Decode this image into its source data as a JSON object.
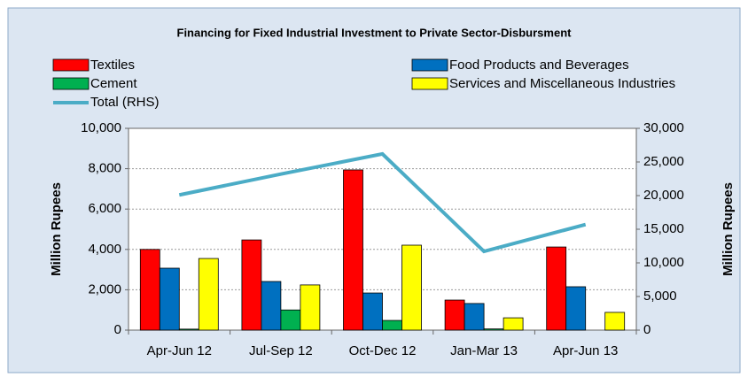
{
  "chart_data": {
    "type": "bar",
    "title": "Financing for Fixed Industrial  Investment to  Private Sector-Disbursment",
    "categories": [
      "Apr-Jun 12",
      "Jul-Sep 12",
      "Oct-Dec 12",
      "Jan-Mar 13",
      "Apr-Jun 13"
    ],
    "series": [
      {
        "name": "Textiles",
        "color": "#ff0000",
        "values": [
          4000,
          4470,
          7940,
          1490,
          4120
        ]
      },
      {
        "name": "Food Products and Beverages",
        "color": "#0070c0",
        "values": [
          3070,
          2410,
          1840,
          1320,
          2150
        ]
      },
      {
        "name": "Cement",
        "color": "#00b050",
        "values": [
          50,
          1000,
          480,
          60,
          0
        ]
      },
      {
        "name": "Services and Miscellaneous Industries",
        "color": "#ffff00",
        "values": [
          3550,
          2240,
          4210,
          610,
          880
        ]
      },
      {
        "name": "Total (RHS)",
        "color": "#4bacc6",
        "axis": "y2",
        "type": "line",
        "values": [
          20100,
          23200,
          26200,
          11700,
          15700
        ]
      }
    ],
    "ylabel": "Million Rupees",
    "y2label": "Million Rupees",
    "ylim": [
      0,
      10000
    ],
    "yticks": [
      0,
      {
        "value": 2000,
        "label": "2,000"
      },
      {
        "value": 4000,
        "label": "4,000"
      },
      {
        "value": 6000,
        "label": "6,000"
      },
      {
        "value": 8000,
        "label": "8,000"
      },
      {
        "value": 10000,
        "label": "10,000"
      }
    ],
    "y2lim": [
      0,
      30000
    ],
    "y2ticks": [
      0,
      {
        "value": 5000,
        "label": "5,000"
      },
      {
        "value": 10000,
        "label": "10,000"
      },
      {
        "value": 15000,
        "label": "15,000"
      },
      {
        "value": 20000,
        "label": "20,000"
      },
      {
        "value": 25000,
        "label": "25,000"
      },
      {
        "value": 30000,
        "label": "30,000"
      }
    ],
    "grid": true
  }
}
